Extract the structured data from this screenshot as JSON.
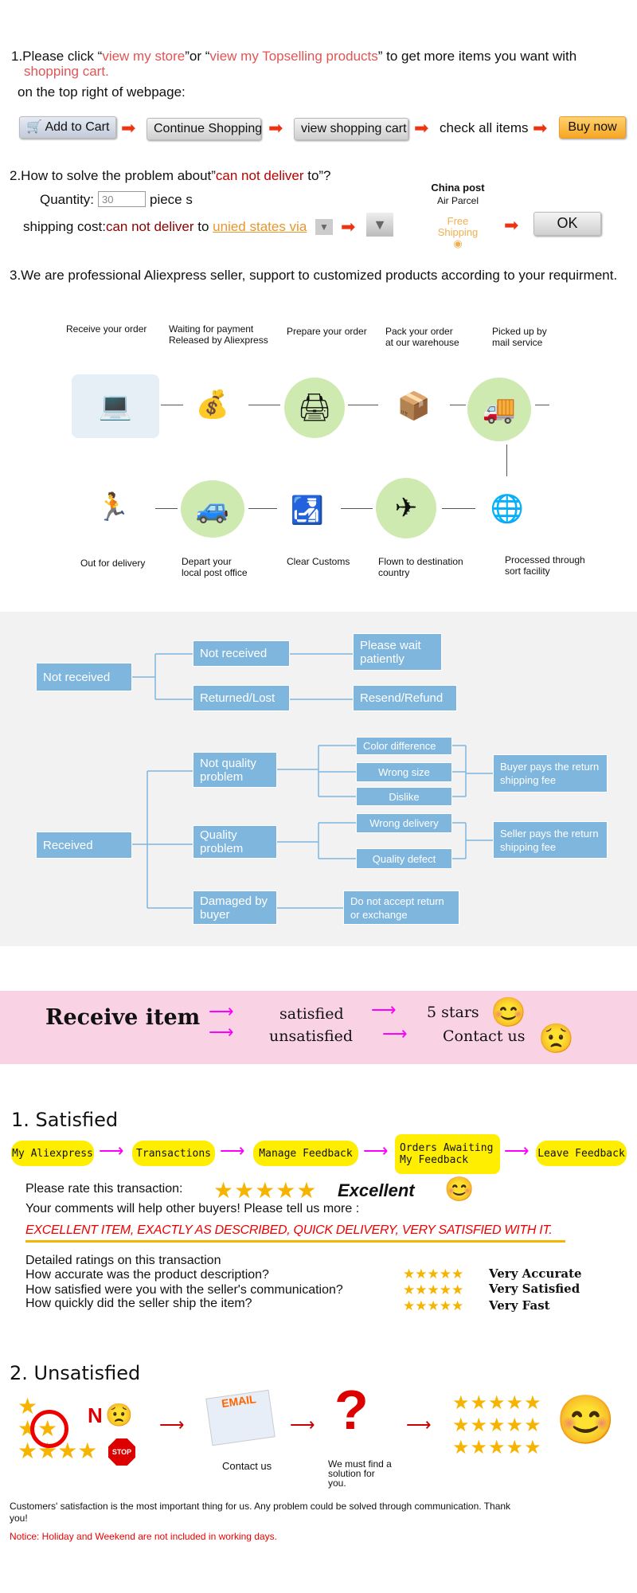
{
  "section1": {
    "p1": "1.Please click “",
    "link1": "view my store",
    "p2": "”or “",
    "link2": "view my Topselling products",
    "p3": "” to get more items you want with",
    "link3": "shopping cart.",
    "line2": "on the top right of webpage:",
    "steps": [
      "Add to Cart",
      "Continue Shopping",
      "view shopping cart",
      "check all items",
      "Buy now"
    ]
  },
  "section2": {
    "p1": "2.How to solve the problem about”",
    "red": "can not deliver",
    "p2": " to”?",
    "quantity_label": "Quantity:",
    "quantity_value": "30",
    "unit": "piece s",
    "shipping_label": "shipping cost:",
    "shipping_red": "can not deliver",
    "shipping_to": " to ",
    "shipping_link": "unied states via",
    "carrier": "China post",
    "carrier_sub": "Air Parcel",
    "free": "Free",
    "shipping": "Shipping",
    "ok": "OK"
  },
  "section3": {
    "text": "3.We are professional Aliexpress seller, support to customized products according to your requirment."
  },
  "process": {
    "top": [
      "Receive your order",
      "Waiting for payment\nReleased by Aliexpress",
      "Prepare your order",
      "Pack your order\nat our warehouse",
      "Picked up by\nmail service"
    ],
    "bottom": [
      "Out for delivery",
      "Depart your\nlocal post office",
      "Clear Customs",
      "Flown to destination\ncountry",
      "Processed through\nsort facility"
    ]
  },
  "flowchart": {
    "not_received": "Not received",
    "not_received2": "Not received",
    "please_wait": "Please wait patiently",
    "returned": "Returned/Lost",
    "resend": "Resend/Refund",
    "received": "Received",
    "not_quality": "Not quality problem",
    "color_diff": "Color difference",
    "wrong_size": "Wrong size",
    "dislike": "Dislike",
    "buyer_pays": "Buyer pays the return shipping fee",
    "quality": "Quality problem",
    "wrong_delivery": "Wrong delivery",
    "quality_defect": "Quality defect",
    "seller_pays": "Seller pays the return shipping fee",
    "damaged": "Damaged by buyer",
    "no_accept": "Do not accept return or exchange"
  },
  "receive": {
    "title": "Receive item",
    "satisfied": "satisfied",
    "unsatisfied": "unsatisfied",
    "five_stars": "5 stars",
    "contact": "Contact us"
  },
  "satisfied": {
    "title": "1. Satisfied",
    "steps": [
      "My Aliexpress",
      "Transactions",
      "Manage Feedback",
      "Orders Awaiting My Feedback",
      "Leave Feedback"
    ],
    "rate": "Please rate this transaction:",
    "excellent": "Excellent",
    "comments": "Your comments will help other buyers! Please tell us more :",
    "review": "EXCELLENT ITEM, EXACTLY AS DESCRIBED, QUICK DELIVERY, VERY SATISFIED WITH IT.",
    "detailed": "Detailed ratings on this transaction",
    "questions": [
      "How accurate was the product description?",
      "How satisfied were you with the seller's communication?",
      "How quickly did the seller ship the item?"
    ],
    "answers": [
      "Very Accurate",
      "Very Satisfied",
      "Very Fast"
    ],
    "stars": 5
  },
  "unsatisfied": {
    "title": "2. Unsatisfied",
    "n": "N",
    "stop": "STOP",
    "email": "EMAIL",
    "contact": "Contact us",
    "solution": "We must find a solution for you.",
    "footer": "Customers' satisfaction is the most important thing for us. Any problem could be solved through communication. Thank you!",
    "notice": "Notice: Holiday and Weekend are not included in working days."
  }
}
